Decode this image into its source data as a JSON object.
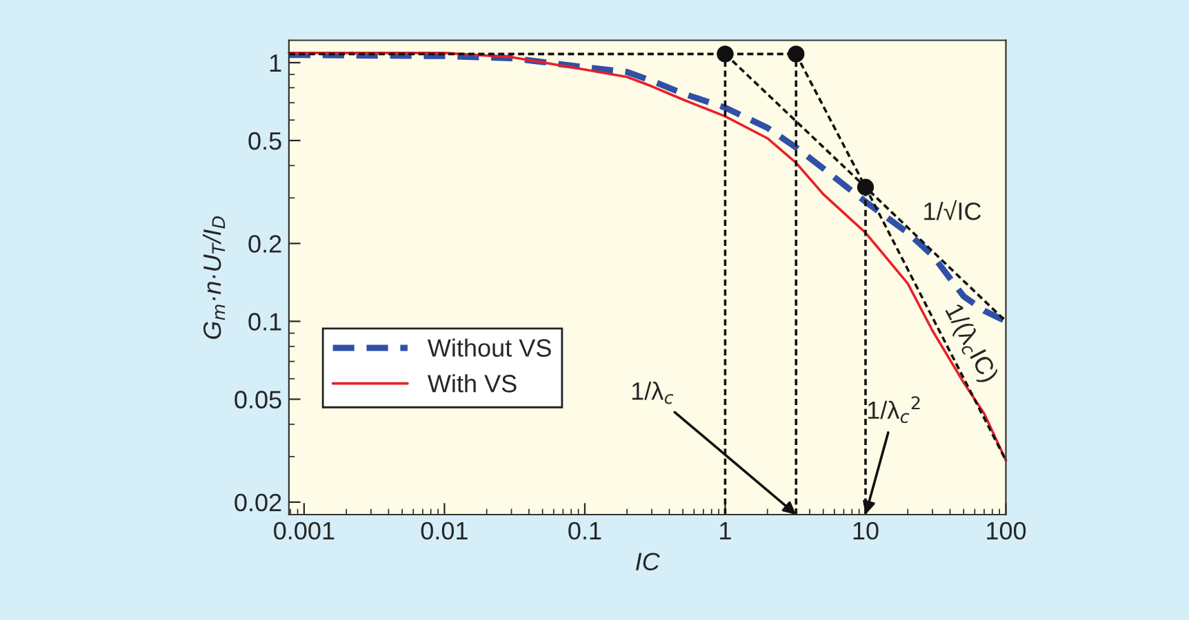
{
  "chart_data": {
    "type": "line",
    "xlabel": "IC",
    "ylabel": "G$_{m}$·n·U$_{T}$/I$_{D}$",
    "log": "xy",
    "xlim": [
      0.00078,
      100
    ],
    "ylim": [
      0.0179,
      1.22
    ],
    "xticks": [
      0.001,
      0.01,
      0.1,
      1,
      10,
      100
    ],
    "yticks": [
      0.02,
      0.05,
      0.1,
      0.2,
      0.5,
      1
    ],
    "grid": false,
    "legend": "bottom left",
    "series": [
      {
        "name": "Without VS",
        "color": "#3050a8",
        "line_style": "dashed",
        "x": [
          0.00078,
          0.001,
          0.01,
          0.03,
          0.1,
          0.2,
          0.3,
          0.5,
          1,
          2,
          3.2,
          5,
          10,
          20,
          30,
          50,
          70,
          100
        ],
        "values": [
          1.07,
          1.07,
          1.06,
          1.04,
          0.96,
          0.92,
          0.85,
          0.76,
          0.67,
          0.56,
          0.47,
          0.39,
          0.29,
          0.22,
          0.18,
          0.125,
          0.11,
          0.1
        ]
      },
      {
        "name": "With VS",
        "color": "#e8212a",
        "line_style": "solid",
        "x": [
          0.00078,
          0.001,
          0.01,
          0.03,
          0.1,
          0.2,
          0.3,
          0.5,
          1,
          2,
          3.2,
          5,
          10,
          20,
          30,
          50,
          70,
          100
        ],
        "values": [
          1.09,
          1.09,
          1.09,
          1.05,
          0.94,
          0.88,
          0.81,
          0.72,
          0.62,
          0.51,
          0.41,
          0.31,
          0.22,
          0.14,
          0.092,
          0.058,
          0.044,
          0.029
        ]
      },
      {
        "color": "#111111",
        "line_style": "dotted",
        "x": [
          0.00078,
          3.2
        ],
        "values": [
          1.08,
          1.08
        ]
      },
      {
        "color": "#111111",
        "line_style": "dotted",
        "x": [
          1,
          10,
          100
        ],
        "values": [
          1.08,
          0.33,
          0.1
        ]
      },
      {
        "color": "#111111",
        "line_style": "dotted",
        "x": [
          3.2,
          10,
          100
        ],
        "values": [
          1.08,
          0.33,
          0.029
        ]
      },
      {
        "color": "#111111",
        "line_style": "dotted",
        "x": [
          1,
          1
        ],
        "values": [
          0.0179,
          1.08
        ]
      },
      {
        "color": "#111111",
        "line_style": "dotted",
        "x": [
          3.2,
          3.2
        ],
        "values": [
          0.0179,
          1.08
        ]
      },
      {
        "color": "#111111",
        "line_style": "dotted",
        "x": [
          10,
          10
        ],
        "values": [
          0.0179,
          0.33
        ]
      },
      {
        "type": "scatter",
        "color": "#111111",
        "marker": "circle",
        "x": [
          1,
          3.2,
          10
        ],
        "values": [
          1.08,
          1.08,
          0.33
        ]
      }
    ],
    "annotations": [
      {
        "text": "1/λ$_{c}$",
        "x": 3.2,
        "y": 0.0179
      },
      {
        "text": "1/λ$_{c}$$^{2}$",
        "x": 10,
        "y": 0.0179
      },
      "1/√IC",
      "1/(λ$_{c}$IC)"
    ]
  }
}
